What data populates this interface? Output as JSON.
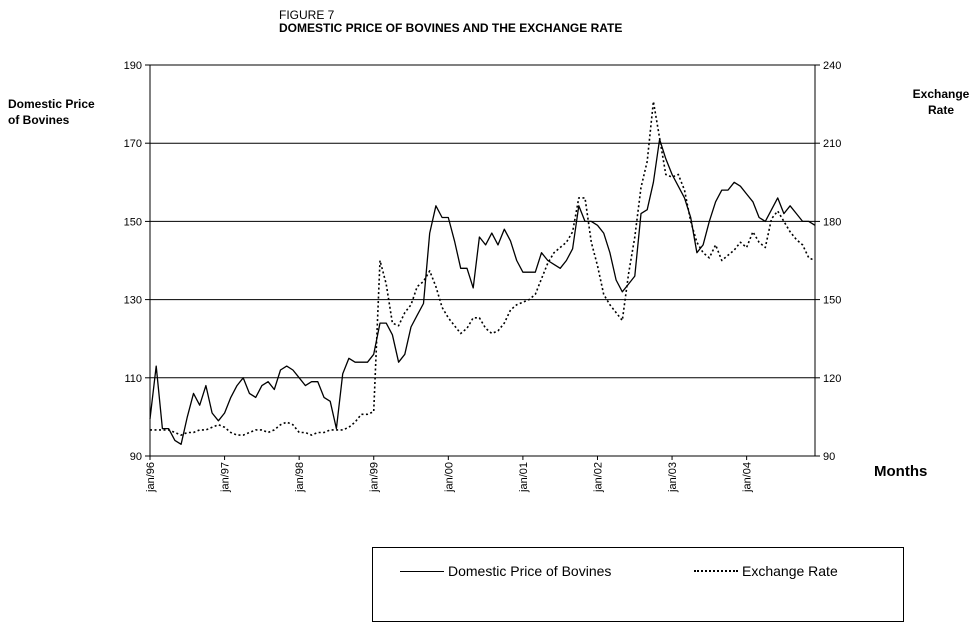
{
  "figure": {
    "label": "FIGURE 7",
    "title": "DOMESTIC PRICE OF BOVINES AND THE EXCHANGE RATE"
  },
  "chart_data": {
    "type": "line",
    "title": "DOMESTIC PRICE OF BOVINES AND THE EXCHANGE RATE",
    "xlabel": "Months",
    "ylabel_left": "Domestic Price of Bovines",
    "ylabel_right": "Exchange Rate",
    "ylim_left": [
      90,
      190
    ],
    "yticks_left": [
      90,
      110,
      130,
      150,
      170,
      190
    ],
    "ylim_right": [
      90,
      240
    ],
    "yticks_right": [
      90,
      120,
      150,
      180,
      210,
      240
    ],
    "x_tick_labels": [
      "jan/96",
      "jan/97",
      "jan/98",
      "jan/99",
      "jan/00",
      "jan/01",
      "jan/02",
      "jan/03",
      "jan/04"
    ],
    "x_start": "jan/96",
    "frequency": "monthly",
    "grid": "horizontal",
    "legend_position": "bottom",
    "series": [
      {
        "name": "Domestic Price of Bovines",
        "axis": "left",
        "style": "solid",
        "values": [
          99.5,
          113,
          97,
          97,
          94,
          93,
          100,
          106,
          103,
          108,
          101,
          99,
          101,
          105,
          108,
          110,
          106,
          105,
          108,
          109,
          107,
          112,
          113,
          112,
          110,
          108,
          109,
          109,
          105,
          104,
          97,
          111,
          115,
          114,
          114,
          114,
          116,
          124,
          124,
          121,
          114,
          116,
          123,
          126,
          129,
          147,
          154,
          151,
          151,
          145,
          138,
          138,
          133,
          146,
          144,
          147,
          144,
          148,
          145,
          140,
          137,
          137,
          137,
          142,
          140,
          139,
          138,
          140,
          143,
          154,
          150,
          150,
          149,
          147,
          142,
          135,
          132,
          134,
          136,
          152,
          153,
          160,
          171,
          166,
          162,
          159,
          156,
          151,
          142,
          144,
          150,
          155,
          158,
          158,
          160,
          159,
          157,
          155,
          151,
          150,
          153,
          156,
          152,
          154,
          152,
          150,
          150,
          149
        ]
      },
      {
        "name": "Exchange Rate",
        "axis": "right",
        "style": "dotted",
        "values": [
          100,
          100,
          100,
          100,
          99,
          98,
          99,
          99,
          100,
          100,
          101,
          102,
          101,
          99,
          98,
          98,
          99,
          100,
          100,
          99,
          100,
          102,
          103,
          102,
          99,
          99,
          98,
          99,
          99,
          100,
          100,
          100,
          101,
          103,
          106,
          106,
          107,
          165,
          156,
          141,
          140,
          145,
          148,
          155,
          157,
          161,
          155,
          147,
          143,
          140,
          137,
          139,
          143,
          143,
          139,
          137,
          138,
          141,
          146,
          148,
          149,
          150,
          152,
          158,
          164,
          168,
          170,
          172,
          176,
          189,
          189,
          172,
          163,
          152,
          148,
          145,
          142,
          160,
          174,
          193,
          203,
          226,
          212,
          198,
          197,
          198,
          192,
          180,
          172,
          168,
          166,
          171,
          165,
          167,
          169,
          172,
          170,
          176,
          172,
          170,
          181,
          184,
          180,
          176,
          173,
          171,
          166,
          165
        ]
      }
    ]
  }
}
